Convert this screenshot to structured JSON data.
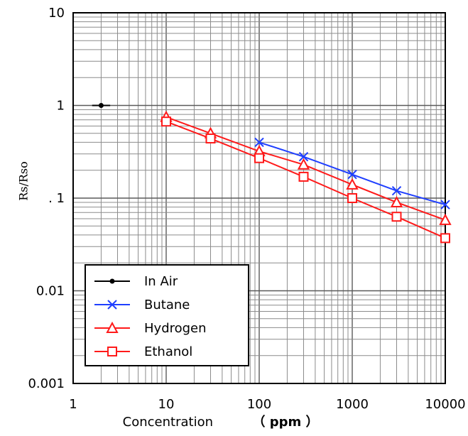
{
  "chart_data": {
    "type": "line",
    "x_scale": "log",
    "y_scale": "log",
    "xlim": [
      1,
      10000
    ],
    "ylim": [
      0.001,
      10
    ],
    "xticks": [
      "1",
      "10",
      "100",
      "1000",
      "10000"
    ],
    "yticks": [
      "0.001",
      "0.01",
      ". 1",
      "1",
      "10"
    ],
    "xlabel_main": "Concentration",
    "xlabel_unit": "（ ppm ）",
    "ylabel": "Rs/Rso",
    "grid": true,
    "legend_position": "bottom-left",
    "series": [
      {
        "name": "In Air",
        "color": "#000000",
        "marker": "dot",
        "x": [
          1.6,
          2,
          2.5
        ],
        "y": [
          1,
          1,
          1
        ]
      },
      {
        "name": "Butane",
        "color": "#1f3fff",
        "marker": "x",
        "x": [
          100,
          300,
          1000,
          3000,
          10000
        ],
        "y": [
          0.4,
          0.28,
          0.18,
          0.12,
          0.085
        ]
      },
      {
        "name": "Hydrogen",
        "color": "#ff1a1a",
        "marker": "triangle",
        "x": [
          10,
          30,
          100,
          300,
          1000,
          3000,
          10000
        ],
        "y": [
          0.75,
          0.5,
          0.32,
          0.23,
          0.14,
          0.09,
          0.058
        ]
      },
      {
        "name": "Ethanol",
        "color": "#ff1a1a",
        "marker": "square",
        "x": [
          10,
          30,
          100,
          300,
          1000,
          3000,
          10000
        ],
        "y": [
          0.67,
          0.44,
          0.27,
          0.17,
          0.1,
          0.063,
          0.037
        ]
      }
    ]
  }
}
